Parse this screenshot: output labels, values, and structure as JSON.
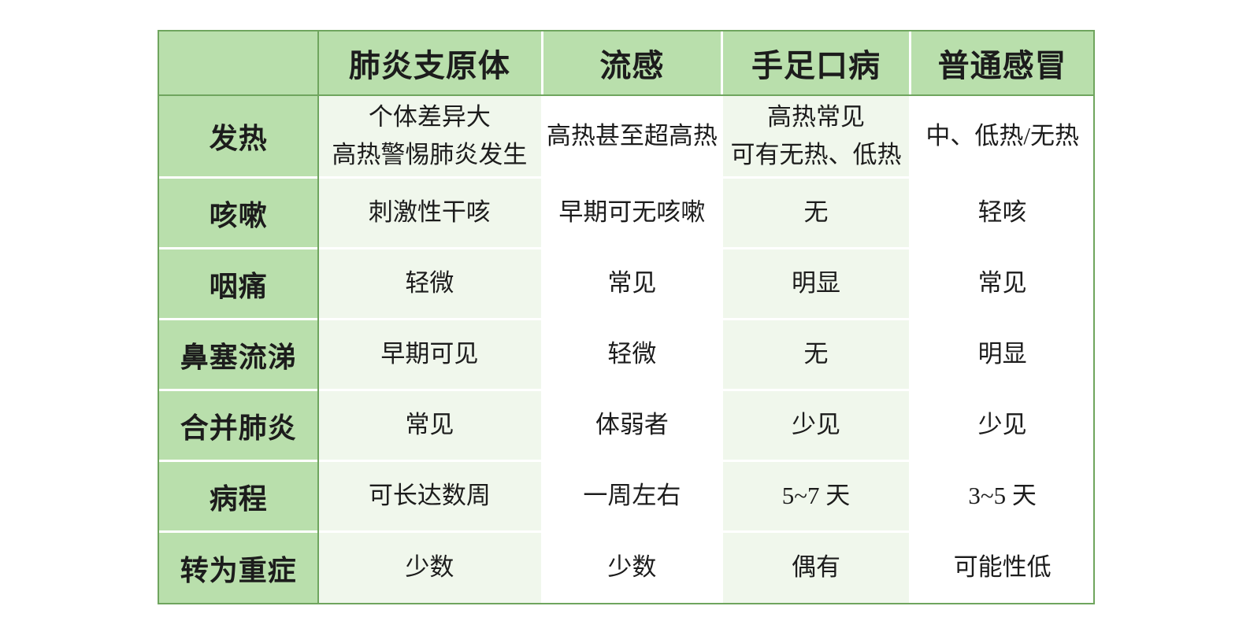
{
  "theme": {
    "header_green": "#b9dfac",
    "light_green": "#f0f7ec",
    "white": "#ffffff",
    "border_green": "#6fa55e",
    "text_color": "#1c1c1c"
  },
  "chart_data": {
    "type": "table",
    "title": "",
    "columns": [
      "",
      "肺炎支原体",
      "流感",
      "手足口病",
      "普通感冒"
    ],
    "rows": [
      {
        "label": "发热",
        "cells": [
          "个体差异大\n高热警惕肺炎发生",
          "高热甚至超高热",
          "高热常见\n可有无热、低热",
          "中、低热/无热"
        ]
      },
      {
        "label": "咳嗽",
        "cells": [
          "刺激性干咳",
          "早期可无咳嗽",
          "无",
          "轻咳"
        ]
      },
      {
        "label": "咽痛",
        "cells": [
          "轻微",
          "常见",
          "明显",
          "常见"
        ]
      },
      {
        "label": "鼻塞流涕",
        "cells": [
          "早期可见",
          "轻微",
          "无",
          "明显"
        ]
      },
      {
        "label": "合并肺炎",
        "cells": [
          "常见",
          "体弱者",
          "少见",
          "少见"
        ]
      },
      {
        "label": "病程",
        "cells": [
          "可长达数周",
          "一周左右",
          "5~7 天",
          "3~5 天"
        ]
      },
      {
        "label": "转为重症",
        "cells": [
          "少数",
          "少数",
          "偶有",
          "可能性低"
        ]
      }
    ]
  }
}
